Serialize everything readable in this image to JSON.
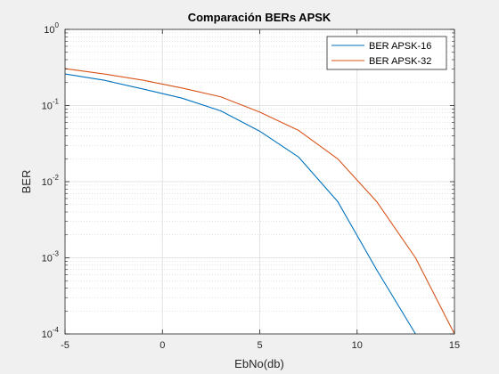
{
  "chart_data": {
    "type": "line",
    "title": "Comparación BERs APSK",
    "xlabel": "EbNo(db)",
    "ylabel": "BER",
    "xlim": [
      -5,
      15
    ],
    "ylim": [
      0.0001,
      1
    ],
    "yscale": "log",
    "grid": "on (major and minor)",
    "legend_position": "top-right",
    "x_ticks": [
      "-5",
      "0",
      "5",
      "10",
      "15"
    ],
    "y_ticks": [
      {
        "base": "10",
        "exp": "0",
        "value": 1
      },
      {
        "base": "10",
        "exp": "-1",
        "value": 0.1
      },
      {
        "base": "10",
        "exp": "-2",
        "value": 0.01
      },
      {
        "base": "10",
        "exp": "-3",
        "value": 0.001
      },
      {
        "base": "10",
        "exp": "-4",
        "value": 0.0001
      }
    ],
    "series": [
      {
        "name": "BER APSK-16",
        "color": "#0072bd",
        "x": [
          -5,
          -3,
          -1,
          1,
          3,
          5,
          7,
          9,
          11,
          13
        ],
        "y": [
          0.26,
          0.215,
          0.165,
          0.125,
          0.085,
          0.046,
          0.021,
          0.0055,
          0.0007,
          0.0001
        ]
      },
      {
        "name": "BER APSK-32",
        "color": "#d95319",
        "x": [
          -5,
          -3,
          -1,
          1,
          3,
          5,
          7,
          9,
          11,
          13,
          15
        ],
        "y": [
          0.305,
          0.26,
          0.215,
          0.17,
          0.13,
          0.082,
          0.047,
          0.02,
          0.0055,
          0.001,
          0.0001
        ]
      }
    ]
  }
}
